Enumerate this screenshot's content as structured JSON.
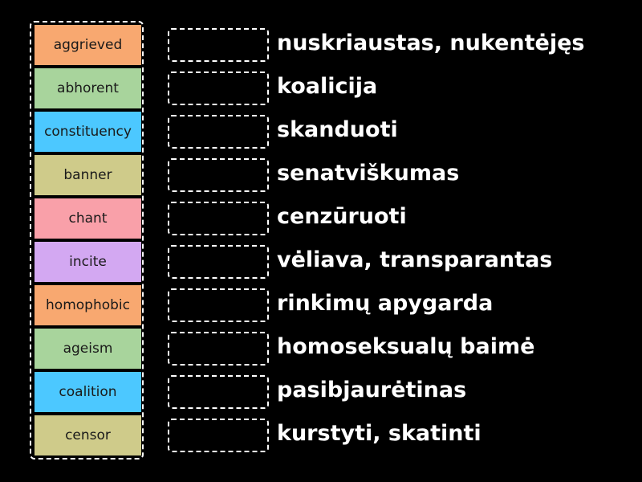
{
  "tiles": [
    {
      "label": "aggrieved",
      "color": "#f8a870"
    },
    {
      "label": "abhorent",
      "color": "#a8d49c"
    },
    {
      "label": "constituency",
      "color": "#4cc8ff"
    },
    {
      "label": "banner",
      "color": "#cfcb8a"
    },
    {
      "label": "chant",
      "color": "#f9a0a9"
    },
    {
      "label": "incite",
      "color": "#d3a8f2"
    },
    {
      "label": "homophobic",
      "color": "#f8a870"
    },
    {
      "label": "ageism",
      "color": "#a8d49c"
    },
    {
      "label": "coalition",
      "color": "#4cc8ff"
    },
    {
      "label": "censor",
      "color": "#cfcb8a"
    }
  ],
  "definitions": [
    "nuskriaustas, nukentėjęs",
    "koalicija",
    "skanduoti",
    "senatviškumas",
    "cenzūruoti",
    "vėliava, transparantas",
    "rinkimų apygarda",
    "homoseksualų baimė",
    "pasibjaurėtinas",
    "kurstyti, skatinti"
  ]
}
